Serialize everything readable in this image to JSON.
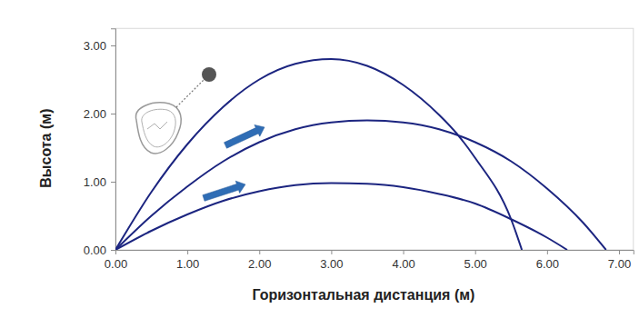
{
  "chart_data": {
    "type": "line",
    "x_label": "Горизонтальная дистанция (м)",
    "y_label": "Высота (м)",
    "xlim": [
      0,
      7.2
    ],
    "ylim": [
      0,
      3.25
    ],
    "xticks": [
      {
        "value": 0,
        "label": "0.00"
      },
      {
        "value": 1,
        "label": "1.00"
      },
      {
        "value": 2,
        "label": "2.00"
      },
      {
        "value": 3,
        "label": "3.00"
      },
      {
        "value": 4,
        "label": "4.00"
      },
      {
        "value": 5,
        "label": "5.00"
      },
      {
        "value": 6,
        "label": "6.00"
      },
      {
        "value": 7,
        "label": "7.00"
      }
    ],
    "yticks": [
      {
        "value": 0,
        "label": "0.00"
      },
      {
        "value": 1,
        "label": "1.00"
      },
      {
        "value": 2,
        "label": "2.00"
      },
      {
        "value": 3,
        "label": "3.00"
      }
    ],
    "grid": false,
    "series": [
      {
        "color": "#1c2580",
        "x": [
          0,
          0.5,
          1.0,
          1.5,
          2.0,
          2.5,
          3.0,
          3.5,
          4.0,
          4.5,
          4.75,
          5.0,
          5.5,
          5.65
        ],
        "values": [
          0,
          0.85,
          1.55,
          2.1,
          2.5,
          2.73,
          2.8,
          2.7,
          2.42,
          1.98,
          1.7,
          1.35,
          0.45,
          0
        ]
      },
      {
        "color": "#1c2580",
        "x": [
          0,
          0.5,
          1.0,
          1.5,
          2.0,
          2.5,
          3.0,
          3.5,
          4.0,
          4.5,
          5.0,
          5.5,
          6.0,
          6.5,
          6.82
        ],
        "values": [
          0,
          0.5,
          0.93,
          1.3,
          1.58,
          1.77,
          1.87,
          1.9,
          1.87,
          1.77,
          1.58,
          1.3,
          0.9,
          0.4,
          0
        ]
      },
      {
        "color": "#1c2580",
        "x": [
          0,
          0.5,
          1.0,
          1.5,
          2.0,
          2.5,
          3.0,
          3.5,
          4.0,
          4.5,
          5.0,
          5.5,
          6.0,
          6.28
        ],
        "values": [
          0,
          0.28,
          0.52,
          0.72,
          0.86,
          0.95,
          0.98,
          0.97,
          0.92,
          0.82,
          0.68,
          0.45,
          0.18,
          0
        ]
      }
    ]
  }
}
